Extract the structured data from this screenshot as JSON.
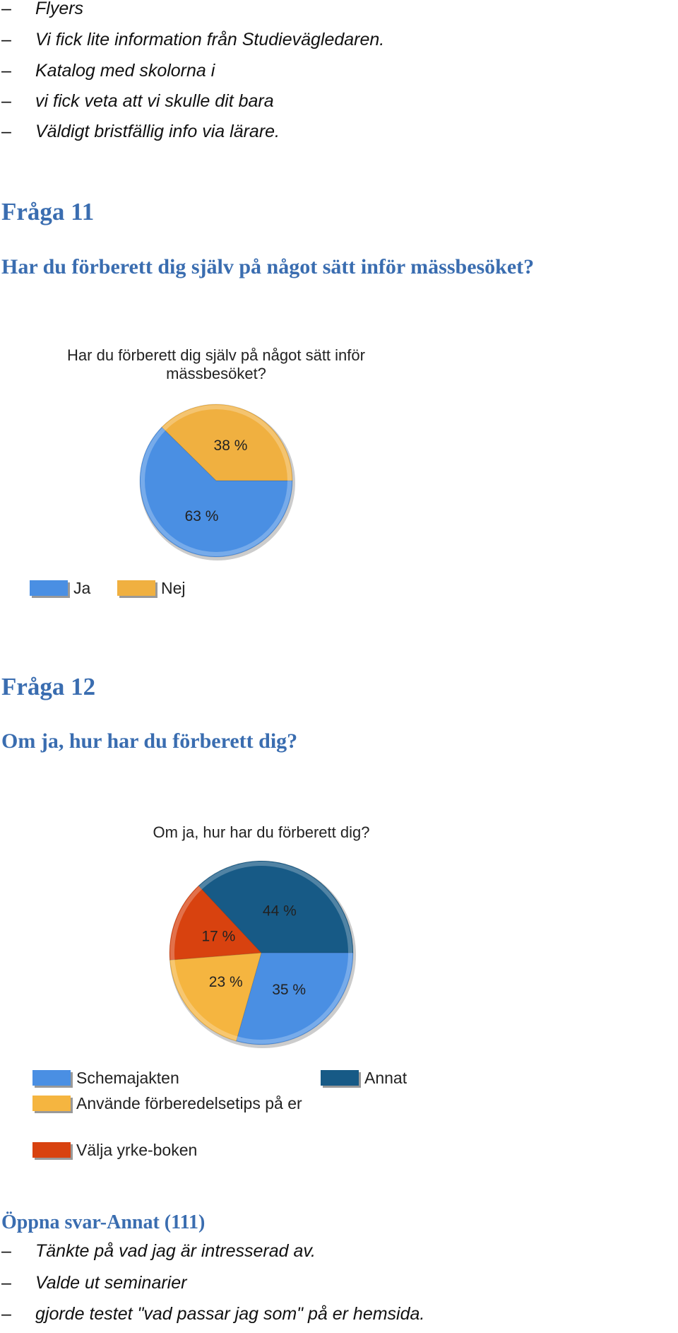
{
  "intro_list": [
    "Flyers",
    "Vi fick lite information från Studievägledaren.",
    "Katalog med skolorna i",
    "vi fick veta att vi skulle dit bara",
    "Väldigt bristfällig info via lärare."
  ],
  "sections": [
    {
      "heading": "Fråga 11",
      "question": "Har du förberett dig själv på något sätt inför mässbesöket?"
    },
    {
      "heading": "Fråga 12",
      "question": "Om ja, hur har du förberett dig?"
    }
  ],
  "chart_data": [
    {
      "type": "pie",
      "title": "Har du förberett dig själv på något sätt inför mässbesöket?",
      "categories": [
        "Ja",
        "Nej"
      ],
      "values": [
        63,
        38
      ],
      "value_labels": [
        "63 %",
        "38 %"
      ],
      "colors": [
        "#4a8fe3",
        "#f0b040"
      ]
    },
    {
      "type": "pie",
      "title": "Om ja, hur har du förberett dig?",
      "categories": [
        "Schemajakten",
        "Använde förberedelsetips på er",
        "Välja yrke-boken",
        "Annat"
      ],
      "values": [
        35,
        23,
        17,
        44
      ],
      "value_labels": [
        "35 %",
        "23 %",
        "17 %",
        "44 %"
      ],
      "colors": [
        "#4a8fe3",
        "#f5b540",
        "#d8420f",
        "#175a86"
      ]
    }
  ],
  "open_answers": {
    "heading": "Öppna svar-Annat (111)",
    "items": [
      "Tänkte på vad jag är intresserad av.",
      "Valde ut seminarier",
      "gjorde testet \"vad passar jag som\" på er hemsida."
    ]
  }
}
